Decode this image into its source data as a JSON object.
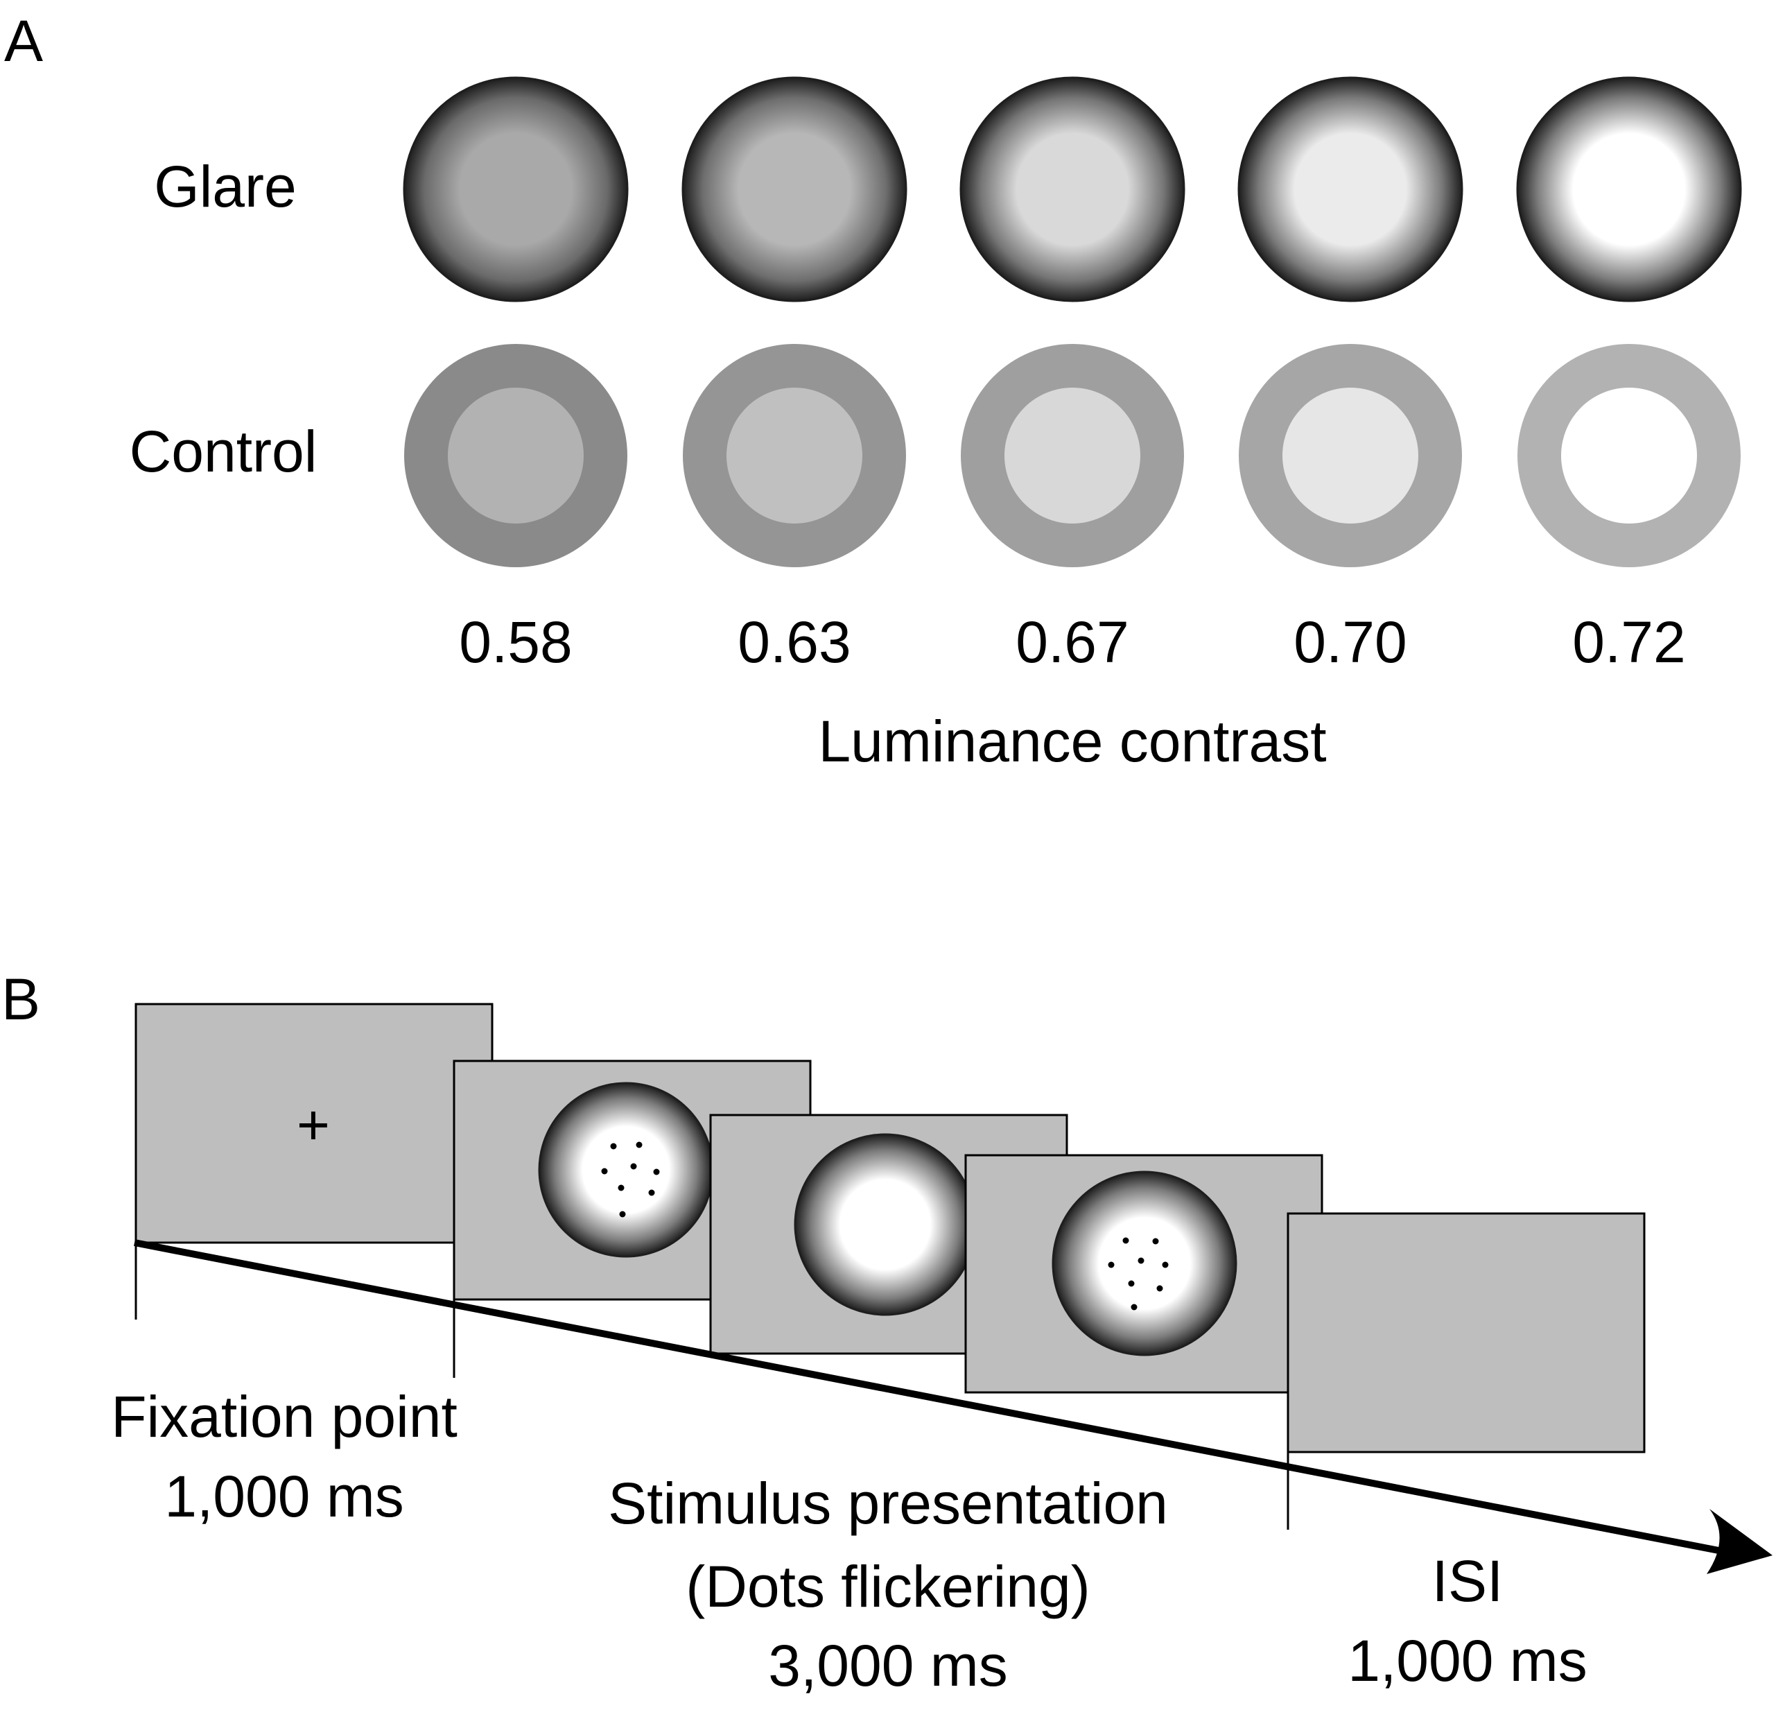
{
  "panel_a": {
    "label": "A",
    "row_labels": {
      "glare": "Glare",
      "control": "Control"
    },
    "contrast_values": [
      "0.58",
      "0.63",
      "0.67",
      "0.70",
      "0.72"
    ],
    "x_axis_label": "Luminance contrast",
    "glare_inner_colors": [
      "#a9a9a9",
      "#b7b7b7",
      "#d9d9d9",
      "#ebebeb",
      "#ffffff"
    ],
    "control_inner_colors": [
      "#b2b2b2",
      "#c0c0c0",
      "#d8d8d8",
      "#e6e6e6",
      "#ffffff"
    ],
    "control_ring_colors": [
      "#8a8a8a",
      "#959595",
      "#9f9f9f",
      "#a6a6a6",
      "#b2b2b2"
    ],
    "glare_edge_color": "#1e1e1e"
  },
  "panel_b": {
    "label": "B",
    "screen_color": "#bebebe",
    "fixation_symbol": "+",
    "phases": {
      "fixation": {
        "name": "Fixation point",
        "duration": "1,000 ms"
      },
      "stimulus": {
        "name": "Stimulus presentation",
        "detail": "(Dots flickering)",
        "duration": "3,000 ms"
      },
      "isi": {
        "name": "ISI",
        "duration": "1,000 ms"
      }
    }
  }
}
